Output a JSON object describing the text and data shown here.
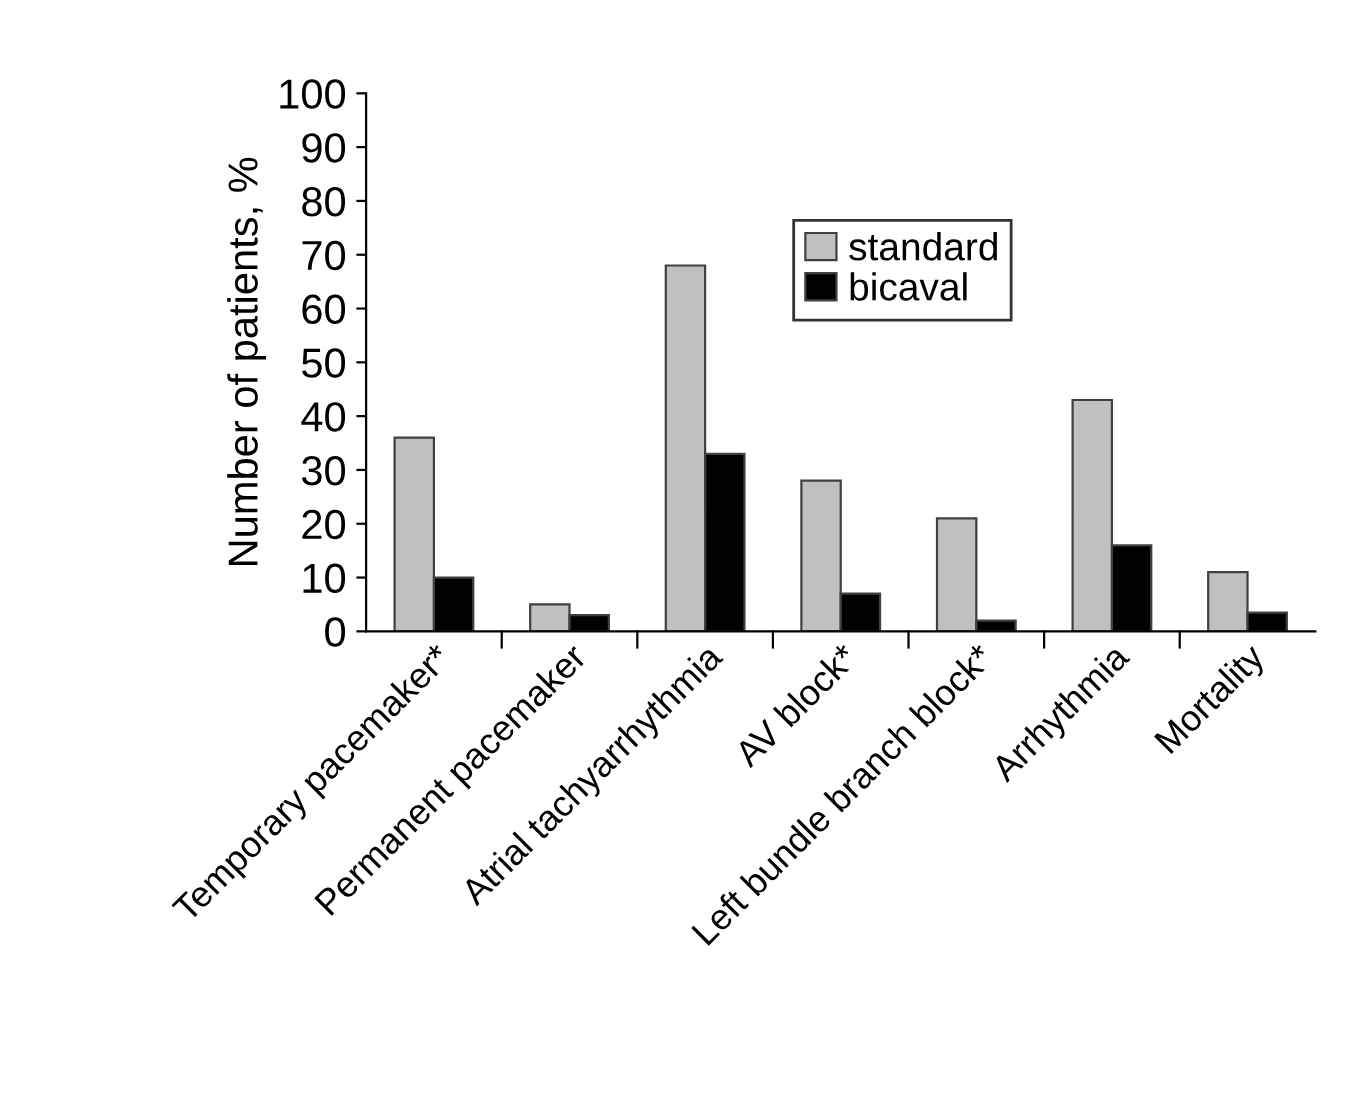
{
  "chart_data": {
    "type": "bar",
    "ylabel": "Number of patients, %",
    "categories": [
      "Temporary pacemaker*",
      "Permanent pacemaker",
      "Atrial tachyarrhythmia",
      "AV block*",
      "Left bundle branch block*",
      "Arrhythmia",
      "Mortality"
    ],
    "series": [
      {
        "name": "standard",
        "color": "#c0c0c0",
        "values": [
          36,
          5,
          68,
          28,
          21,
          43,
          11
        ]
      },
      {
        "name": "bicaval",
        "color": "#000000",
        "values": [
          10,
          3,
          33,
          7,
          2,
          16,
          3.5
        ]
      }
    ],
    "ylim": [
      0,
      100
    ],
    "yticks": [
      0,
      10,
      20,
      30,
      40,
      50,
      60,
      70,
      80,
      90,
      100
    ],
    "grid": false,
    "legend": "top right"
  }
}
